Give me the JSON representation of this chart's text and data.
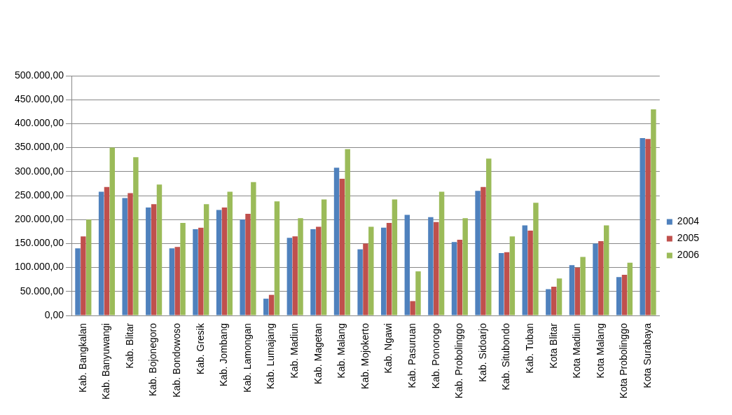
{
  "chart_data": {
    "type": "bar",
    "categories": [
      "Kab. Bangkalan",
      "Kab. Banyuwangi",
      "Kab. Blitar",
      "Kab. Bojonegoro",
      "Kab. Bondowoso",
      "Kab. Gresik",
      "Kab. Jombang",
      "Kab. Lamongan",
      "Kab. Lumajang",
      "Kab. Madiun",
      "Kab. Magetan",
      "Kab. Malang",
      "Kab. Mojokerto",
      "Kab. Ngawi",
      "Kab. Pasuruan",
      "Kab. Ponorogo",
      "Kab. Probolinggo",
      "Kab. Sidoarjo",
      "Kab. Situbondo",
      "Kab. Tuban",
      "Kota Blitar",
      "Kota Madiun",
      "Kota Malang",
      "Kota Probolinggo",
      "Kota Surabaya"
    ],
    "series": [
      {
        "name": "2004",
        "color": "#4f81bd",
        "values": [
          140000,
          258000,
          245000,
          225000,
          140000,
          180000,
          220000,
          200000,
          35000,
          162000,
          180000,
          308000,
          138000,
          183000,
          210000,
          205000,
          153000,
          260000,
          130000,
          188000,
          55000,
          105000,
          150000,
          80000,
          370000
        ]
      },
      {
        "name": "2005",
        "color": "#c0504d",
        "values": [
          165000,
          268000,
          255000,
          232000,
          143000,
          183000,
          225000,
          212000,
          43000,
          165000,
          185000,
          285000,
          150000,
          193000,
          30000,
          195000,
          158000,
          268000,
          132000,
          177000,
          60000,
          100000,
          155000,
          85000,
          368000
        ]
      },
      {
        "name": "2006",
        "color": "#9bbb59",
        "values": [
          200000,
          350000,
          330000,
          273000,
          193000,
          232000,
          258000,
          278000,
          238000,
          203000,
          242000,
          347000,
          185000,
          242000,
          92000,
          258000,
          203000,
          327000,
          165000,
          235000,
          77000,
          122000,
          188000,
          110000,
          430000
        ]
      }
    ],
    "ylim": [
      0,
      500000
    ],
    "yticks": [
      {
        "value": 0,
        "label": "0,00"
      },
      {
        "value": 50000,
        "label": "50.000,00"
      },
      {
        "value": 100000,
        "label": "100.000,00"
      },
      {
        "value": 150000,
        "label": "150.000,00"
      },
      {
        "value": 200000,
        "label": "200.000,00"
      },
      {
        "value": 250000,
        "label": "250.000,00"
      },
      {
        "value": 300000,
        "label": "300.000,00"
      },
      {
        "value": 350000,
        "label": "350.000,00"
      },
      {
        "value": 400000,
        "label": "400.000,00"
      },
      {
        "value": 450000,
        "label": "450.000,00"
      },
      {
        "value": 500000,
        "label": "500.000,00"
      }
    ],
    "grid": "y",
    "legend": "right"
  }
}
